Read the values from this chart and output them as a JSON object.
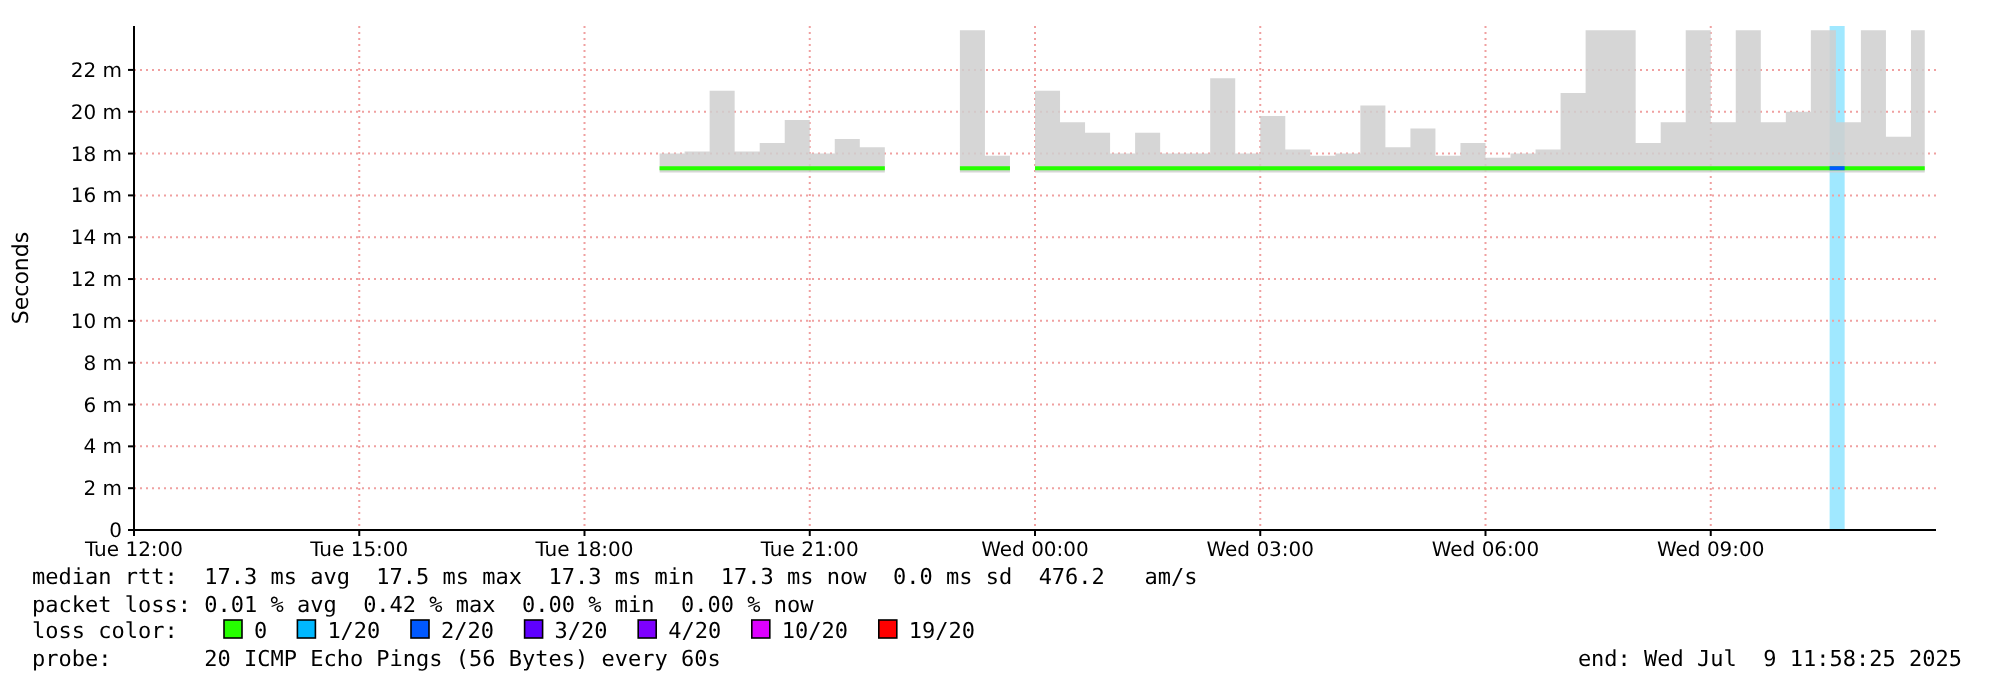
{
  "chart_data": {
    "type": "line",
    "ylabel": "Seconds",
    "xlim": [
      "2025-07-08T12:00",
      "2025-07-09T12:00"
    ],
    "xticks": [
      {
        "value": "2025-07-08T12:00",
        "label": "Tue 12:00"
      },
      {
        "value": "2025-07-08T15:00",
        "label": "Tue 15:00"
      },
      {
        "value": "2025-07-08T18:00",
        "label": "Tue 18:00"
      },
      {
        "value": "2025-07-08T21:00",
        "label": "Tue 21:00"
      },
      {
        "value": "2025-07-09T00:00",
        "label": "Wed 00:00"
      },
      {
        "value": "2025-07-09T03:00",
        "label": "Wed 03:00"
      },
      {
        "value": "2025-07-09T06:00",
        "label": "Wed 06:00"
      },
      {
        "value": "2025-07-09T09:00",
        "label": "Wed 09:00"
      }
    ],
    "ylim": [
      0,
      24.1
    ],
    "yticks": [
      0,
      {
        "value": 2,
        "label": "2 m"
      },
      {
        "value": 4,
        "label": "4 m"
      },
      {
        "value": 6,
        "label": "6 m"
      },
      {
        "value": 8,
        "label": "8 m"
      },
      {
        "value": 10,
        "label": "10 m"
      },
      {
        "value": 12,
        "label": "12 m"
      },
      {
        "value": 14,
        "label": "14 m"
      },
      {
        "value": 16,
        "label": "16 m"
      },
      {
        "value": 18,
        "label": "18 m"
      },
      {
        "value": 20,
        "label": "20 m"
      },
      {
        "value": 22,
        "label": "22 m"
      }
    ],
    "grid": true,
    "legend": "bottom",
    "legend_title": "loss color:",
    "marker": "none",
    "line_style": "solid",
    "bands": [
      {
        "axis": "x",
        "from": "2025-07-09T10:35",
        "to": "2025-07-09T10:47",
        "color": "#a0e8ff"
      }
    ],
    "annotations": [
      "median rtt:  17.3 ms avg  17.5 ms max  17.3 ms min  17.3 ms now  0.0 ms sd  476.2   am/s",
      "packet loss: 0.01 % avg  0.42 % max  0.00 % min  0.00 % now",
      "probe:       20 ICMP Echo Pings (56 Bytes) every 60s",
      "end: Wed Jul  9 11:58:25 2025"
    ],
    "series": [
      {
        "name": "0",
        "color": "#26ff00",
        "x": [
          "2025-07-08T19:00",
          "2025-07-08T19:20",
          "2025-07-08T19:40",
          "2025-07-08T20:00",
          "2025-07-08T20:20",
          "2025-07-08T20:40",
          "2025-07-08T21:00",
          "2025-07-08T21:20",
          "2025-07-08T21:40",
          "2025-07-08T22:00",
          "2025-07-08T22:30",
          "2025-07-08T23:00",
          "2025-07-08T23:20",
          "2025-07-08T23:40",
          "2025-07-08T23:50",
          "2025-07-09T00:00",
          "2025-07-09T00:20",
          "2025-07-09T00:40",
          "2025-07-09T01:00",
          "2025-07-09T01:20",
          "2025-07-09T01:40",
          "2025-07-09T02:00",
          "2025-07-09T02:20",
          "2025-07-09T02:40",
          "2025-07-09T03:00",
          "2025-07-09T03:20",
          "2025-07-09T03:40",
          "2025-07-09T04:00",
          "2025-07-09T04:20",
          "2025-07-09T04:40",
          "2025-07-09T05:00",
          "2025-07-09T05:20",
          "2025-07-09T05:40",
          "2025-07-09T06:00",
          "2025-07-09T06:20",
          "2025-07-09T06:40",
          "2025-07-09T07:00",
          "2025-07-09T07:20",
          "2025-07-09T07:40",
          "2025-07-09T08:00",
          "2025-07-09T08:20",
          "2025-07-09T08:40",
          "2025-07-09T09:00",
          "2025-07-09T09:20",
          "2025-07-09T09:40",
          "2025-07-09T10:00",
          "2025-07-09T10:20",
          "2025-07-09T10:40",
          "2025-07-09T11:00",
          "2025-07-09T11:20",
          "2025-07-09T11:40",
          "2025-07-09T11:51"
        ],
        "values": [
          17.3,
          17.3,
          17.3,
          17.3,
          17.3,
          17.3,
          17.3,
          17.3,
          17.3,
          17.3,
          null,
          17.3,
          17.3,
          17.3,
          null,
          17.3,
          17.3,
          17.3,
          17.3,
          17.3,
          17.3,
          17.3,
          17.3,
          17.3,
          17.3,
          17.3,
          17.3,
          17.3,
          17.3,
          17.3,
          17.3,
          17.3,
          17.3,
          17.3,
          17.3,
          17.3,
          17.3,
          17.3,
          17.3,
          17.3,
          17.3,
          17.3,
          17.3,
          17.3,
          17.3,
          17.3,
          17.3,
          17.3,
          17.3,
          17.3,
          17.3,
          17.3
        ],
        "lower": [
          17.1,
          17.1,
          17.1,
          17.1,
          17.1,
          17.1,
          17.1,
          17.1,
          17.1,
          17.1,
          null,
          17.1,
          17.1,
          17.1,
          null,
          17.1,
          17.1,
          17.1,
          17.1,
          17.1,
          17.1,
          17.1,
          17.1,
          17.1,
          17.1,
          17.1,
          17.1,
          17.1,
          17.1,
          17.1,
          17.1,
          17.1,
          17.1,
          17.1,
          17.1,
          17.1,
          17.1,
          17.1,
          17.1,
          17.1,
          17.1,
          17.1,
          17.1,
          17.1,
          17.1,
          17.1,
          17.1,
          17.1,
          17.1,
          17.1,
          17.1,
          17.1
        ],
        "upper": [
          18,
          18.1,
          21,
          18.1,
          18.5,
          19.6,
          18,
          18.7,
          18.3,
          18.3,
          null,
          23.9,
          17.9,
          17.9,
          null,
          21,
          19.5,
          19,
          18,
          19,
          18,
          18,
          21.6,
          18,
          19.8,
          18.2,
          17.9,
          18,
          20.3,
          18.3,
          19.2,
          17.9,
          18.5,
          17.8,
          18,
          18.2,
          20.9,
          23.9,
          23.9,
          18.5,
          19.5,
          23.9,
          19.5,
          23.9,
          19.5,
          20,
          23.9,
          19.5,
          23.9,
          18.8,
          23.9,
          23.9
        ]
      },
      {
        "name": "1/20",
        "color": "#00b8ff"
      },
      {
        "name": "2/20",
        "color": "#0059ff",
        "x": [
          "2025-07-09T10:35",
          "2025-07-09T10:47"
        ],
        "values": [
          17.3,
          17.3
        ]
      },
      {
        "name": "3/20",
        "color": "#5e00ff"
      },
      {
        "name": "4/20",
        "color": "#7e00ff"
      },
      {
        "name": "10/20",
        "color": "#dd00ff"
      },
      {
        "name": "19/20",
        "color": "#ff0000"
      }
    ]
  }
}
